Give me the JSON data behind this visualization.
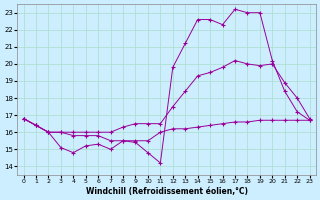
{
  "xlabel": "Windchill (Refroidissement éolien,°C)",
  "x_ticks": [
    0,
    1,
    2,
    3,
    4,
    5,
    6,
    7,
    8,
    9,
    10,
    11,
    12,
    13,
    14,
    15,
    16,
    17,
    18,
    19,
    20,
    21,
    22,
    23
  ],
  "y_ticks": [
    14,
    15,
    16,
    17,
    18,
    19,
    20,
    21,
    22,
    23
  ],
  "xlim": [
    -0.5,
    23.5
  ],
  "ylim": [
    13.5,
    23.5
  ],
  "background_color": "#cceeff",
  "grid_color": "#aaddcc",
  "line_color": "#990099",
  "line1_x": [
    0,
    1,
    2,
    3,
    4,
    5,
    6,
    7,
    8,
    9,
    10,
    11,
    12,
    13,
    14,
    15,
    16,
    17,
    18,
    19,
    20,
    21,
    22,
    23
  ],
  "line1_y": [
    16.8,
    16.4,
    16.0,
    16.0,
    15.8,
    15.8,
    15.8,
    15.5,
    15.5,
    15.5,
    15.5,
    16.0,
    16.2,
    16.2,
    16.3,
    16.4,
    16.5,
    16.6,
    16.6,
    16.7,
    16.7,
    16.7,
    16.7,
    16.7
  ],
  "line2_x": [
    0,
    1,
    2,
    3,
    4,
    5,
    6,
    7,
    8,
    9,
    10,
    11,
    12,
    13,
    14,
    15,
    16,
    17,
    18,
    19,
    20,
    21,
    22,
    23
  ],
  "line2_y": [
    16.8,
    16.4,
    16.0,
    15.1,
    14.8,
    15.2,
    15.3,
    15.0,
    15.5,
    15.4,
    14.8,
    14.2,
    19.8,
    21.2,
    22.6,
    22.6,
    22.3,
    23.2,
    23.0,
    23.0,
    20.2,
    18.4,
    17.2,
    16.7
  ],
  "line3_x": [
    0,
    1,
    2,
    3,
    4,
    5,
    6,
    7,
    8,
    9,
    10,
    11,
    12,
    13,
    14,
    15,
    16,
    17,
    18,
    19,
    20,
    21,
    22,
    23
  ],
  "line3_y": [
    16.8,
    16.4,
    16.0,
    16.0,
    16.0,
    16.0,
    16.0,
    16.0,
    16.3,
    16.5,
    16.5,
    16.5,
    17.5,
    18.4,
    19.3,
    19.5,
    19.8,
    20.2,
    20.0,
    19.9,
    20.0,
    18.9,
    18.0,
    16.8
  ]
}
